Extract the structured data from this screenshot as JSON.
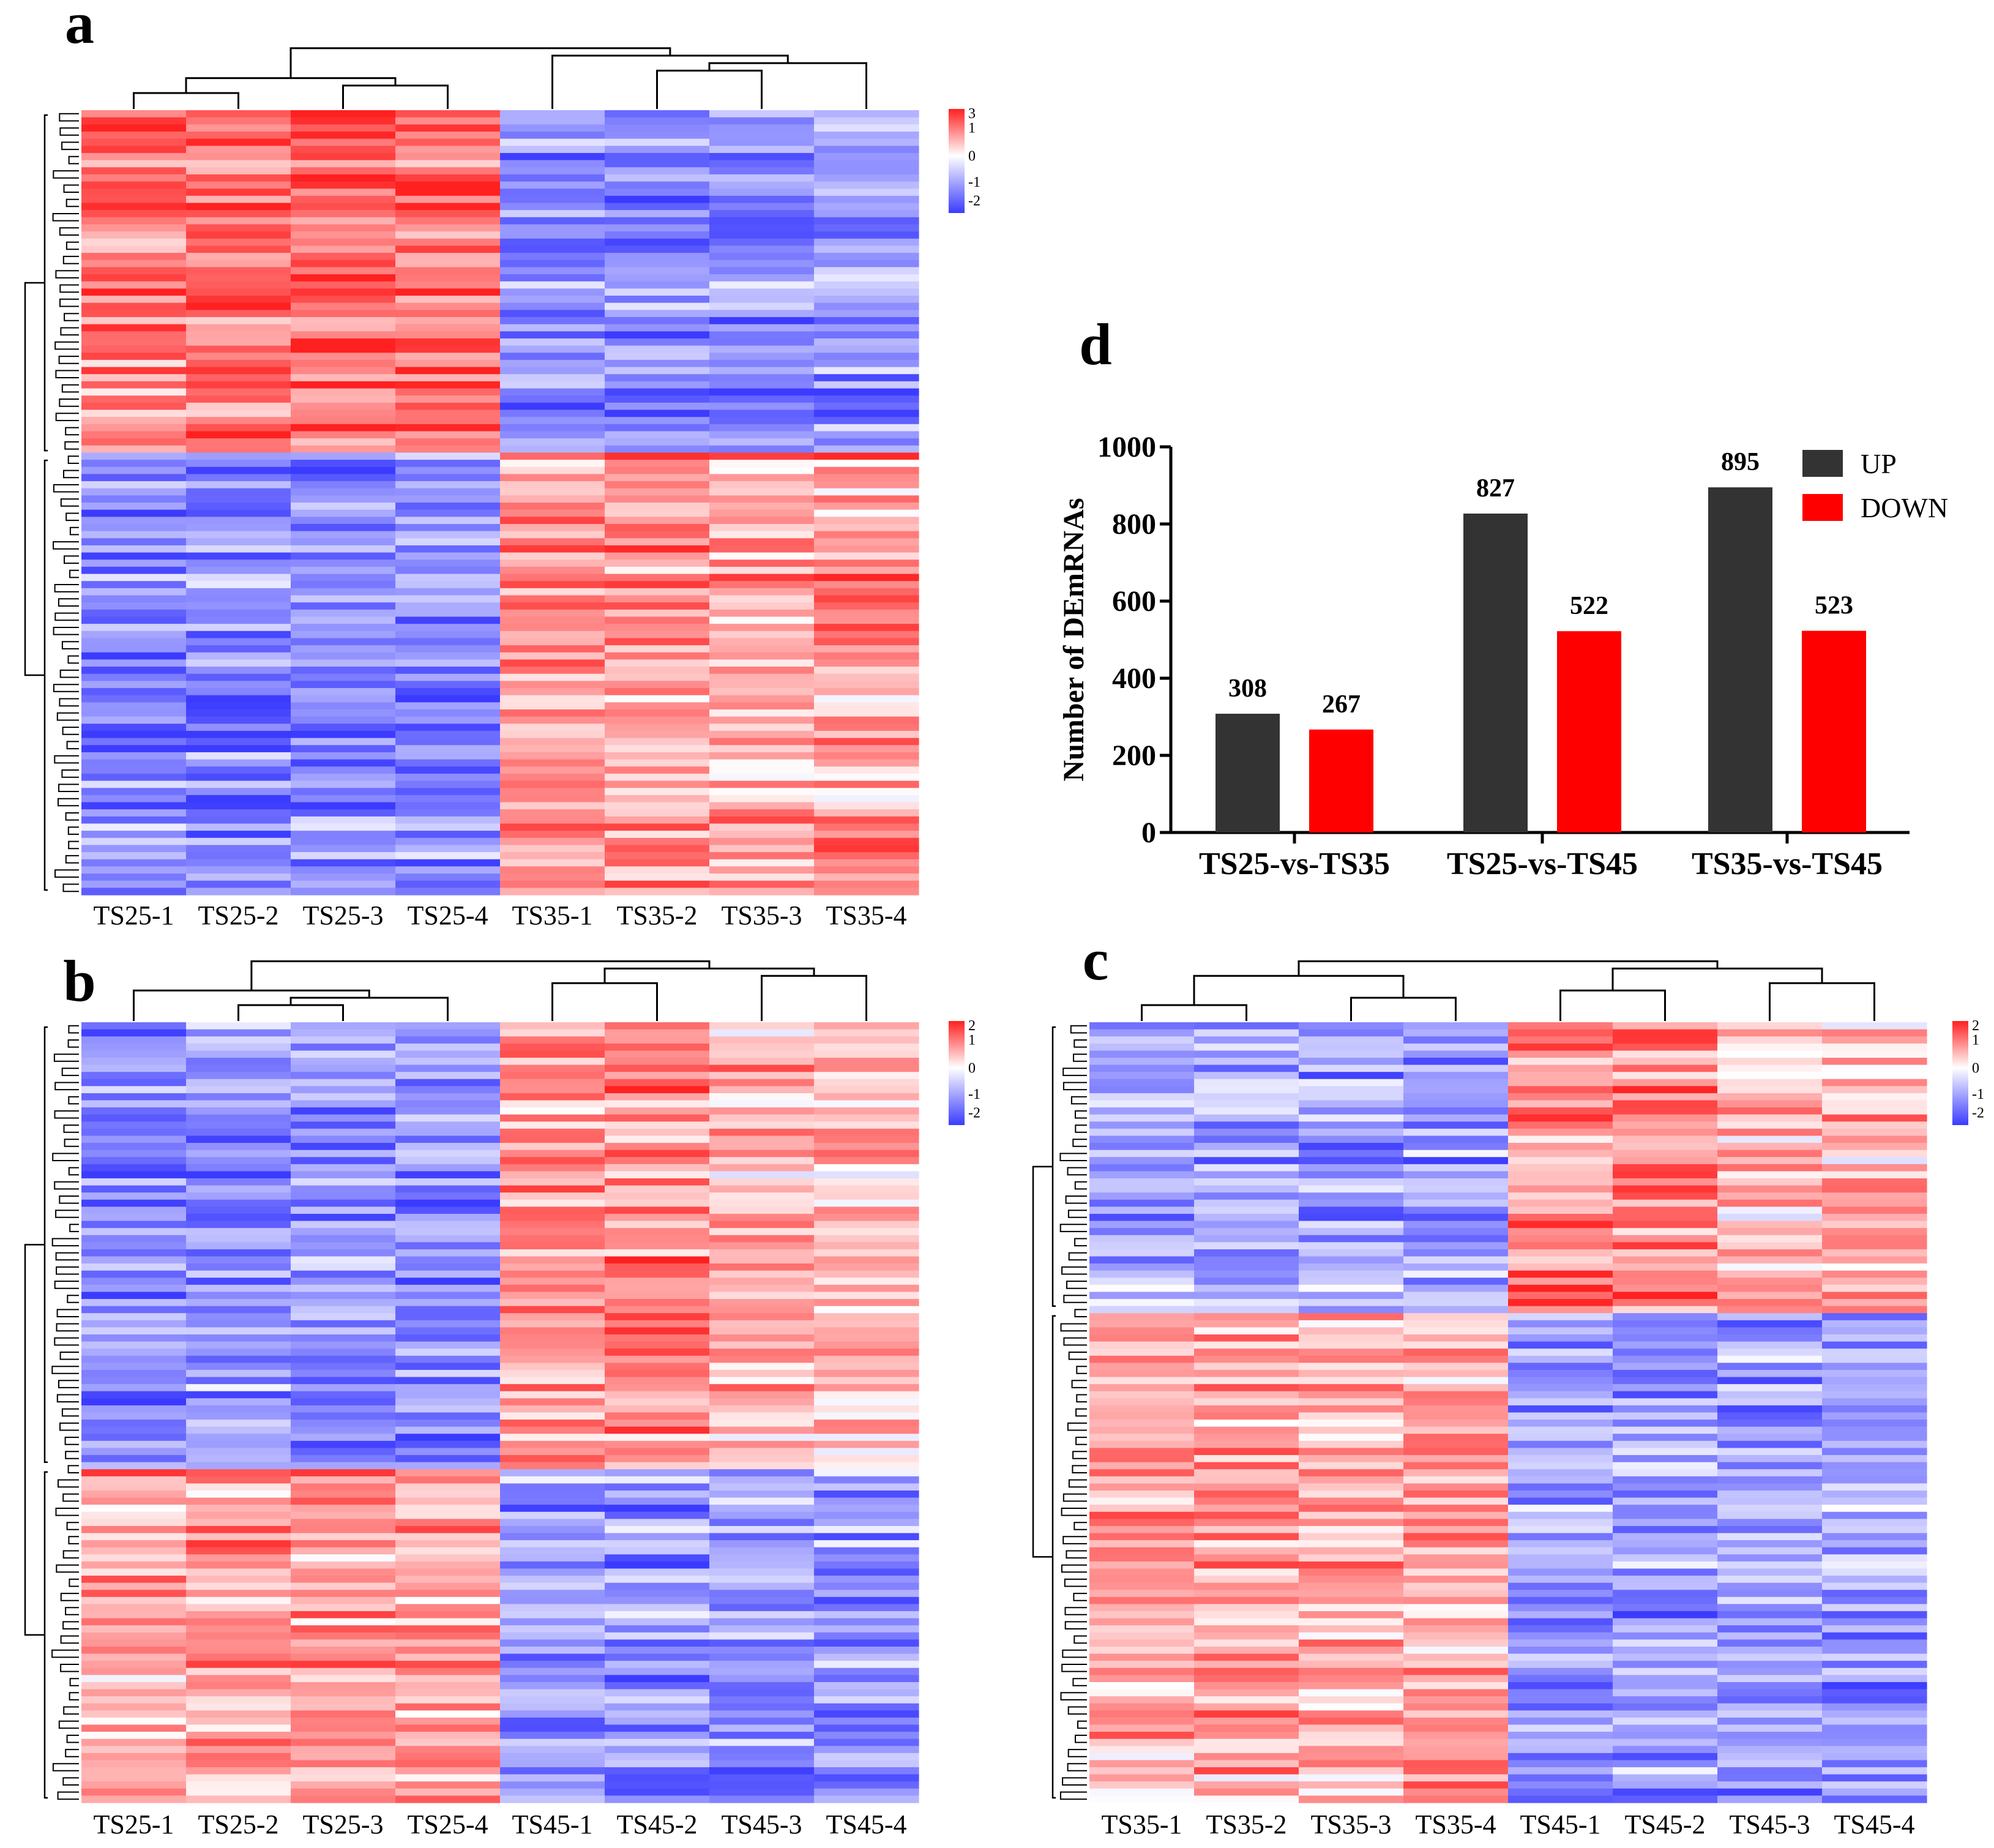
{
  "figure": {
    "panel_letters": [
      "a",
      "b",
      "c",
      "d"
    ]
  },
  "colors": {
    "low": "#3b3bff",
    "mid": "#ffffff",
    "high": "#ff2020",
    "up_bar": "#333333",
    "down_bar": "#ff0000",
    "dendro": "#000000"
  },
  "chart_data": [
    {
      "panel": "a",
      "type": "heatmap",
      "title": "",
      "columns": [
        "TS25-1",
        "TS25-2",
        "TS25-3",
        "TS25-4",
        "TS35-1",
        "TS35-2",
        "TS35-3",
        "TS35-4"
      ],
      "colorbar": {
        "range": [
          -2,
          3
        ],
        "ticks": [
          "3",
          "1",
          "0",
          "-1",
          "-2"
        ]
      },
      "pattern": {
        "row_blocks": [
          {
            "fraction": 0.44,
            "group_means": [
              1.2,
              1.2,
              1.2,
              1.2,
              -1.2,
              -1.2,
              -1.2,
              -1.2
            ]
          },
          {
            "fraction": 0.56,
            "group_means": [
              -1.2,
              -1.2,
              -1.2,
              -1.2,
              0.9,
              0.9,
              0.7,
              0.9
            ]
          }
        ]
      },
      "column_dendrogram": [
        [
          0,
          1
        ],
        [
          2,
          3
        ],
        [
          8,
          9
        ],
        [
          5,
          6
        ],
        [
          7,
          11
        ],
        [
          4,
          12
        ],
        [
          10,
          13
        ]
      ]
    },
    {
      "panel": "b",
      "type": "heatmap",
      "title": "",
      "columns": [
        "TS25-1",
        "TS25-2",
        "TS25-3",
        "TS25-4",
        "TS45-1",
        "TS45-2",
        "TS45-3",
        "TS45-4"
      ],
      "colorbar": {
        "range": [
          -2,
          2
        ],
        "ticks": [
          "2",
          "1",
          "0",
          "-1",
          "-2"
        ]
      },
      "pattern": {
        "row_blocks": [
          {
            "fraction": 0.57,
            "group_means": [
              -1.1,
              -1.1,
              -1.1,
              -1.1,
              1.0,
              1.0,
              0.7,
              0.7
            ]
          },
          {
            "fraction": 0.43,
            "group_means": [
              0.9,
              0.9,
              0.9,
              0.9,
              -1.0,
              -1.0,
              -1.0,
              -1.0
            ]
          }
        ]
      },
      "column_dendrogram": [
        [
          1,
          2
        ],
        [
          3,
          8
        ],
        [
          0,
          9
        ],
        [
          4,
          5
        ],
        [
          6,
          7
        ],
        [
          11,
          12
        ],
        [
          10,
          13
        ]
      ]
    },
    {
      "panel": "c",
      "type": "heatmap",
      "title": "",
      "columns": [
        "TS35-1",
        "TS35-2",
        "TS35-3",
        "TS35-4",
        "TS45-1",
        "TS45-2",
        "TS45-3",
        "TS45-4"
      ],
      "colorbar": {
        "range": [
          -2,
          2
        ],
        "ticks": [
          "2",
          "1",
          "0",
          "-1",
          "-2"
        ]
      },
      "pattern": {
        "row_blocks": [
          {
            "fraction": 0.37,
            "group_means": [
              -1.0,
              -1.0,
              -1.0,
              -1.0,
              1.0,
              1.0,
              0.6,
              0.7
            ]
          },
          {
            "fraction": 0.63,
            "group_means": [
              0.8,
              0.8,
              0.8,
              0.8,
              -1.0,
              -1.0,
              -1.0,
              -1.0
            ]
          }
        ]
      },
      "column_dendrogram": [
        [
          0,
          1
        ],
        [
          2,
          3
        ],
        [
          4,
          5
        ],
        [
          6,
          7
        ],
        [
          8,
          9
        ],
        [
          10,
          11
        ],
        [
          12,
          13
        ]
      ]
    },
    {
      "panel": "d",
      "type": "bar",
      "title": "",
      "xlabel": "",
      "ylabel": "Number of DEmRNAs",
      "ylim": [
        0,
        1000
      ],
      "yticks": [
        0,
        200,
        400,
        600,
        800,
        1000
      ],
      "categories": [
        "TS25-vs-TS35",
        "TS25-vs-TS45",
        "TS35-vs-TS45"
      ],
      "series": [
        {
          "name": "UP",
          "values": [
            308,
            827,
            895
          ]
        },
        {
          "name": "DOWN",
          "values": [
            267,
            522,
            523
          ]
        }
      ],
      "legend": "top-right"
    }
  ]
}
